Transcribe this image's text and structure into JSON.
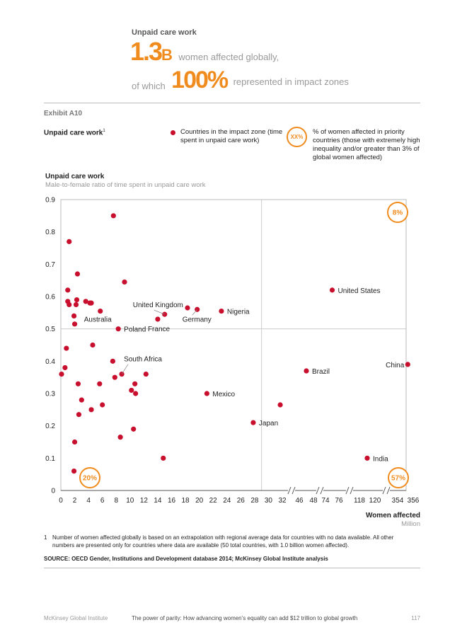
{
  "header": {
    "kicker": "Unpaid care work",
    "big_number": "1.3",
    "big_unit": "B",
    "line1_suffix": "women affected globally,",
    "line2_prefix": "of which",
    "big_percent": "100%",
    "line2_suffix": "represented in impact zones"
  },
  "exhibit": {
    "label": "Exhibit A10",
    "title": "Unpaid care work",
    "title_sup": "1",
    "legend_dot_label": "Countries in the impact zone (time spent in unpaid care work)",
    "legend_circle_text": "XX%",
    "legend_circle_label": "% of women affected in priority countries (those with extremely high inequality and/or greater than 3% of global women affected)"
  },
  "chart_data": {
    "type": "scatter",
    "title": "Unpaid care work",
    "subtitle": "Male-to-female ratio of time spent in unpaid care work",
    "xlabel": "Women affected",
    "xunit": "Million",
    "ylim": [
      0,
      0.9
    ],
    "yticks": [
      "0",
      "0.1",
      "0.2",
      "0.3",
      "0.4",
      "0.5",
      "0.6",
      "0.7",
      "0.8",
      "0.9"
    ],
    "xticks": [
      "0",
      "2",
      "4",
      "6",
      "8",
      "10",
      "12",
      "14",
      "16",
      "18",
      "20",
      "22",
      "24",
      "26",
      "28",
      "30",
      "32",
      "46",
      "48",
      "74",
      "76",
      "118",
      "120",
      "354",
      "356"
    ],
    "x_axis_breaks": [
      [
        32,
        46
      ],
      [
        48,
        74
      ],
      [
        76,
        118
      ],
      [
        120,
        354
      ]
    ],
    "dividers": {
      "x": 29,
      "y": 0.5
    },
    "color": "#c8102e",
    "accent": "#f08c1e",
    "quadrant_percents": {
      "top_right": "8%",
      "bottom_left": "20%",
      "bottom_right": "57%"
    },
    "points": [
      {
        "x": 0.1,
        "y": 0.36
      },
      {
        "x": 0.6,
        "y": 0.38
      },
      {
        "x": 0.8,
        "y": 0.44
      },
      {
        "x": 1.0,
        "y": 0.62
      },
      {
        "x": 1.0,
        "y": 0.585
      },
      {
        "x": 1.2,
        "y": 0.575
      },
      {
        "x": 1.2,
        "y": 0.77
      },
      {
        "x": 1.9,
        "y": 0.06
      },
      {
        "x": 2.0,
        "y": 0.15
      },
      {
        "x": 1.9,
        "y": 0.54
      },
      {
        "x": 2.0,
        "y": 0.515
      },
      {
        "x": 2.2,
        "y": 0.575
      },
      {
        "x": 2.3,
        "y": 0.59
      },
      {
        "x": 2.4,
        "y": 0.67
      },
      {
        "x": 2.5,
        "y": 0.33
      },
      {
        "x": 2.6,
        "y": 0.235
      },
      {
        "x": 3.0,
        "y": 0.28
      },
      {
        "x": 3.6,
        "y": 0.585
      },
      {
        "x": 4.2,
        "y": 0.58
      },
      {
        "x": 4.4,
        "y": 0.58
      },
      {
        "x": 4.4,
        "y": 0.25
      },
      {
        "x": 4.6,
        "y": 0.45
      },
      {
        "x": 5.6,
        "y": 0.33
      },
      {
        "x": 5.7,
        "y": 0.555,
        "label": "Australia"
      },
      {
        "x": 6.0,
        "y": 0.265
      },
      {
        "x": 7.5,
        "y": 0.4
      },
      {
        "x": 7.6,
        "y": 0.85
      },
      {
        "x": 7.8,
        "y": 0.35
      },
      {
        "x": 8.3,
        "y": 0.5,
        "label": "Poland"
      },
      {
        "x": 8.6,
        "y": 0.165
      },
      {
        "x": 8.8,
        "y": 0.36,
        "label": "South Africa"
      },
      {
        "x": 9.2,
        "y": 0.645
      },
      {
        "x": 10.2,
        "y": 0.31
      },
      {
        "x": 10.5,
        "y": 0.19
      },
      {
        "x": 10.7,
        "y": 0.33
      },
      {
        "x": 10.8,
        "y": 0.3
      },
      {
        "x": 12.3,
        "y": 0.36
      },
      {
        "x": 14.0,
        "y": 0.53,
        "label": "France"
      },
      {
        "x": 14.8,
        "y": 0.1
      },
      {
        "x": 15.0,
        "y": 0.545,
        "label": "United Kingdom"
      },
      {
        "x": 18.3,
        "y": 0.565
      },
      {
        "x": 19.7,
        "y": 0.56,
        "label": "Germany"
      },
      {
        "x": 23.2,
        "y": 0.555,
        "label": "Nigeria"
      },
      {
        "x": 21.1,
        "y": 0.3,
        "label": "Mexico"
      },
      {
        "x": 27.8,
        "y": 0.21,
        "label": "Japan"
      },
      {
        "x": 31.7,
        "y": 0.265
      },
      {
        "x": 47.0,
        "y": 0.37,
        "label": "Brazil"
      },
      {
        "x": 75.0,
        "y": 0.62,
        "label": "United States"
      },
      {
        "x": 119.0,
        "y": 0.1,
        "label": "India"
      },
      {
        "x": 355.3,
        "y": 0.39,
        "label": "China"
      }
    ]
  },
  "footnote": {
    "num": "1",
    "text": "Number of women affected globally is based on an extrapolation with regional average data for countries with no data available. All other numbers are presented only for countries where data are available (50 total countries, with 1.0 billion women affected).",
    "source": "SOURCE: OECD Gender, Institutions and Development database 2014; McKinsey Global Institute analysis"
  },
  "page_footer": {
    "publisher": "McKinsey Global Institute",
    "title": "The power of parity: How advancing women’s equality can add $12 trillion to global growth",
    "page": "117"
  }
}
